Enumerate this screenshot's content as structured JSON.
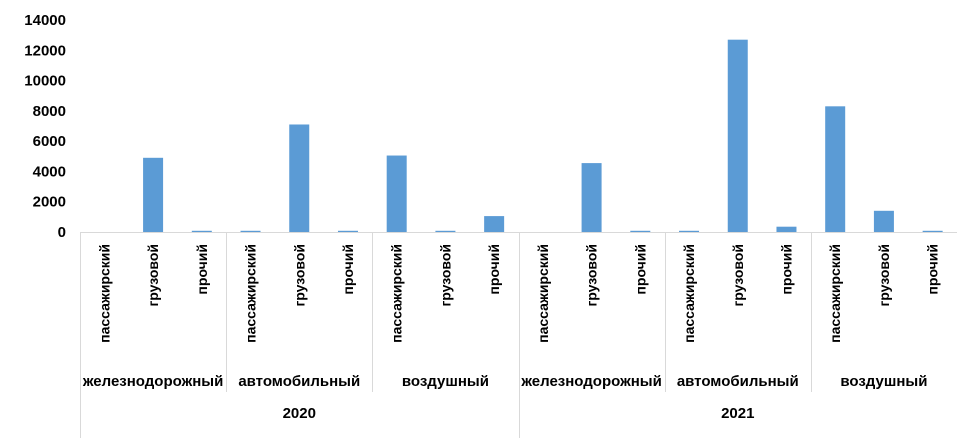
{
  "chart_data": {
    "type": "bar",
    "title": "",
    "xlabel": "",
    "ylabel": "",
    "ylim": [
      0,
      14000
    ],
    "yticks": [
      0,
      2000,
      4000,
      6000,
      8000,
      10000,
      12000,
      14000
    ],
    "grid": false,
    "legend": "none",
    "bar_color": "#5b9bd5",
    "years": [
      {
        "label": "2020",
        "groups": [
          {
            "label": "железнодорожный",
            "categories": [
              "пассажирский",
              "грузовой",
              "прочий"
            ],
            "values": [
              0,
              4900,
              80
            ]
          },
          {
            "label": "автомобильный",
            "categories": [
              "пассажирский",
              "грузовой",
              "прочий"
            ],
            "values": [
              80,
              7100,
              80
            ]
          },
          {
            "label": "воздушный",
            "categories": [
              "пассажирский",
              "грузовой",
              "прочий"
            ],
            "values": [
              5050,
              80,
              1050
            ]
          }
        ]
      },
      {
        "label": "2021",
        "groups": [
          {
            "label": "железнодорожный",
            "categories": [
              "пассажирский",
              "грузовой",
              "прочий"
            ],
            "values": [
              0,
              4550,
              80
            ]
          },
          {
            "label": "автомобильный",
            "categories": [
              "пассажирский",
              "грузовой",
              "прочий"
            ],
            "values": [
              80,
              12700,
              350
            ]
          },
          {
            "label": "воздушный",
            "categories": [
              "пассажирский",
              "грузовой",
              "прочий"
            ],
            "values": [
              8300,
              1400,
              80
            ]
          }
        ]
      }
    ]
  }
}
